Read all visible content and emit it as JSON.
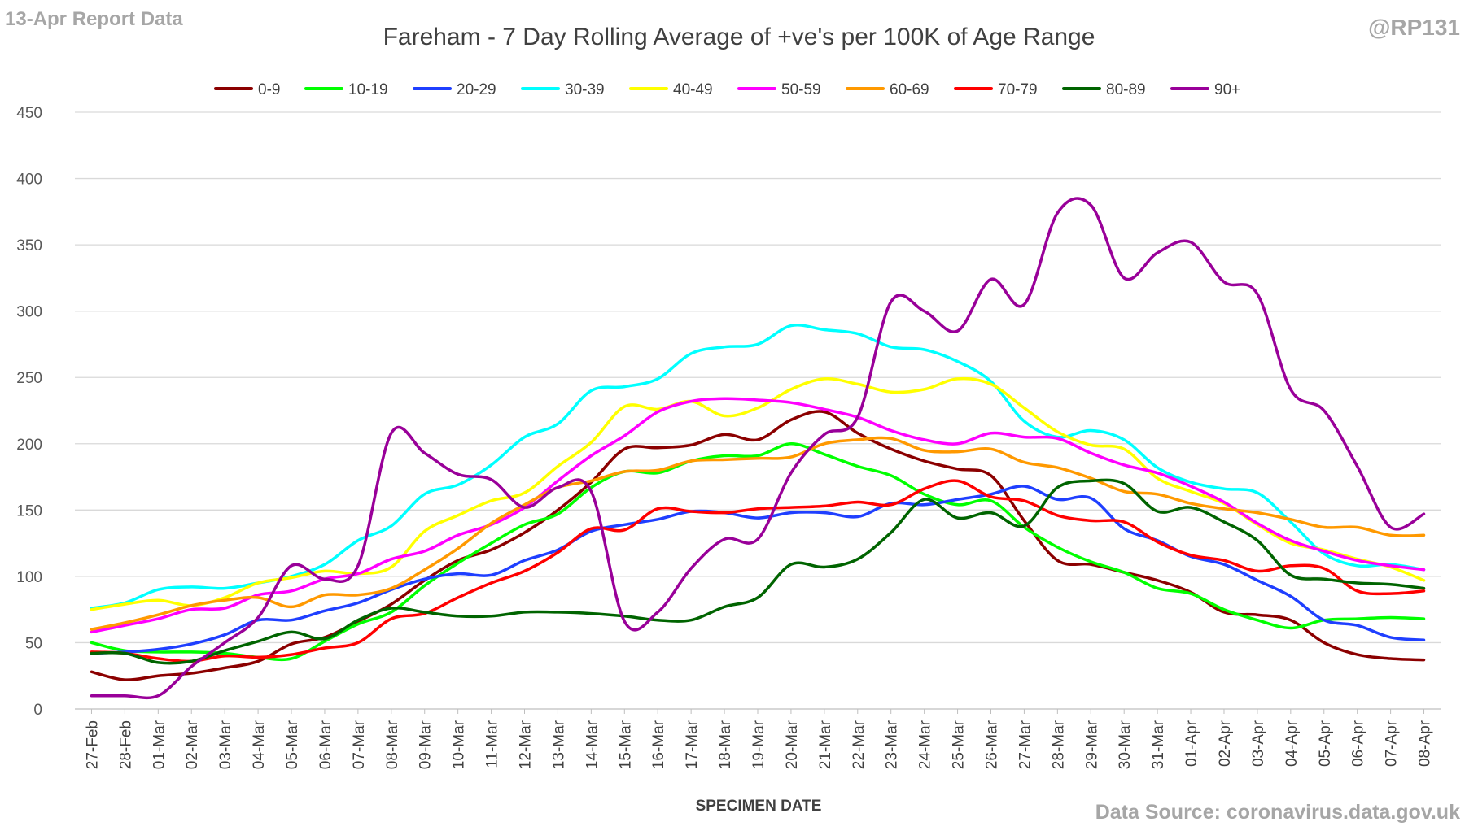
{
  "report_label": "13-Apr Report Data",
  "handle": "@RP131",
  "source": "Data Source: coronavirus.data.gov.uk",
  "chart_data": {
    "type": "line",
    "title": "Fareham - 7 Day Rolling Average of +ve's per 100K of Age Range",
    "xlabel": "SPECIMEN DATE",
    "ylabel": "",
    "ylim": [
      0,
      450
    ],
    "yticks": [
      0,
      50,
      100,
      150,
      200,
      250,
      300,
      350,
      400,
      450
    ],
    "grid": true,
    "legend": "top",
    "categories": [
      "27-Feb",
      "28-Feb",
      "01-Mar",
      "02-Mar",
      "03-Mar",
      "04-Mar",
      "05-Mar",
      "06-Mar",
      "07-Mar",
      "08-Mar",
      "09-Mar",
      "10-Mar",
      "11-Mar",
      "12-Mar",
      "13-Mar",
      "14-Mar",
      "15-Mar",
      "16-Mar",
      "17-Mar",
      "18-Mar",
      "19-Mar",
      "20-Mar",
      "21-Mar",
      "22-Mar",
      "23-Mar",
      "24-Mar",
      "25-Mar",
      "26-Mar",
      "27-Mar",
      "28-Mar",
      "29-Mar",
      "30-Mar",
      "31-Mar",
      "01-Apr",
      "02-Apr",
      "03-Apr",
      "04-Apr",
      "05-Apr",
      "06-Apr",
      "07-Apr",
      "08-Apr"
    ],
    "series": [
      {
        "name": "0-9",
        "color": "#8b0000",
        "values": [
          28,
          22,
          25,
          27,
          31,
          36,
          49,
          54,
          66,
          79,
          97,
          112,
          120,
          133,
          150,
          171,
          196,
          197,
          199,
          207,
          203,
          218,
          224,
          208,
          196,
          187,
          181,
          176,
          142,
          112,
          109,
          103,
          97,
          88,
          73,
          71,
          67,
          50,
          41,
          38,
          37
        ]
      },
      {
        "name": "10-19",
        "color": "#00ff00",
        "values": [
          50,
          44,
          43,
          43,
          42,
          39,
          38,
          51,
          64,
          73,
          93,
          110,
          125,
          139,
          147,
          167,
          179,
          178,
          187,
          191,
          191,
          200,
          192,
          183,
          176,
          162,
          154,
          157,
          137,
          122,
          111,
          103,
          91,
          87,
          75,
          67,
          61,
          67,
          68,
          69,
          68
        ]
      },
      {
        "name": "20-29",
        "color": "#1f3fff",
        "values": [
          42,
          43,
          45,
          49,
          56,
          67,
          67,
          74,
          80,
          90,
          98,
          102,
          101,
          112,
          120,
          134,
          139,
          143,
          149,
          148,
          144,
          148,
          148,
          145,
          155,
          154,
          158,
          162,
          168,
          158,
          159,
          136,
          127,
          115,
          109,
          97,
          85,
          67,
          63,
          54,
          52
        ]
      },
      {
        "name": "30-39",
        "color": "#00ffff",
        "values": [
          76,
          80,
          90,
          92,
          91,
          95,
          100,
          109,
          127,
          138,
          162,
          169,
          184,
          205,
          215,
          240,
          243,
          249,
          268,
          273,
          275,
          289,
          286,
          283,
          273,
          271,
          262,
          247,
          217,
          205,
          210,
          203,
          182,
          171,
          166,
          163,
          141,
          117,
          108,
          109,
          105
        ]
      },
      {
        "name": "40-49",
        "color": "#ffff00",
        "values": [
          75,
          79,
          82,
          78,
          84,
          95,
          99,
          104,
          102,
          107,
          134,
          146,
          157,
          163,
          183,
          201,
          228,
          226,
          232,
          221,
          227,
          241,
          249,
          245,
          239,
          241,
          249,
          245,
          227,
          209,
          199,
          196,
          174,
          164,
          155,
          139,
          125,
          120,
          113,
          107,
          97
        ]
      },
      {
        "name": "50-59",
        "color": "#ff00ff",
        "values": [
          58,
          63,
          68,
          75,
          76,
          86,
          89,
          98,
          102,
          113,
          119,
          131,
          139,
          152,
          172,
          191,
          206,
          224,
          232,
          234,
          233,
          231,
          226,
          220,
          210,
          203,
          200,
          208,
          205,
          204,
          193,
          184,
          178,
          168,
          156,
          140,
          127,
          119,
          112,
          108,
          105
        ]
      },
      {
        "name": "60-69",
        "color": "#ff9900",
        "values": [
          60,
          65,
          71,
          78,
          82,
          84,
          77,
          86,
          86,
          91,
          105,
          121,
          140,
          154,
          167,
          172,
          179,
          180,
          187,
          188,
          189,
          190,
          200,
          203,
          204,
          195,
          194,
          196,
          186,
          182,
          174,
          164,
          162,
          155,
          151,
          148,
          143,
          137,
          137,
          131,
          131
        ]
      },
      {
        "name": "70-79",
        "color": "#ff0000",
        "values": [
          43,
          42,
          38,
          36,
          40,
          39,
          41,
          46,
          50,
          68,
          72,
          84,
          95,
          104,
          118,
          136,
          135,
          151,
          149,
          148,
          151,
          152,
          153,
          156,
          154,
          166,
          172,
          160,
          157,
          146,
          142,
          141,
          126,
          116,
          112,
          104,
          108,
          106,
          89,
          87,
          89
        ]
      },
      {
        "name": "80-89",
        "color": "#006400",
        "values": [
          42,
          42,
          35,
          36,
          44,
          51,
          58,
          53,
          67,
          76,
          73,
          70,
          70,
          73,
          73,
          72,
          70,
          67,
          67,
          77,
          84,
          109,
          107,
          113,
          133,
          158,
          144,
          148,
          138,
          167,
          172,
          170,
          149,
          152,
          141,
          127,
          101,
          98,
          95,
          94,
          91
        ]
      },
      {
        "name": "90+",
        "color": "#990099",
        "values": [
          10,
          10,
          10,
          32,
          50,
          69,
          108,
          98,
          108,
          208,
          193,
          177,
          173,
          152,
          167,
          164,
          66,
          73,
          106,
          128,
          128,
          178,
          207,
          220,
          307,
          300,
          285,
          324,
          305,
          374,
          380,
          325,
          344,
          352,
          322,
          313,
          241,
          225,
          183,
          137,
          147
        ]
      }
    ]
  }
}
